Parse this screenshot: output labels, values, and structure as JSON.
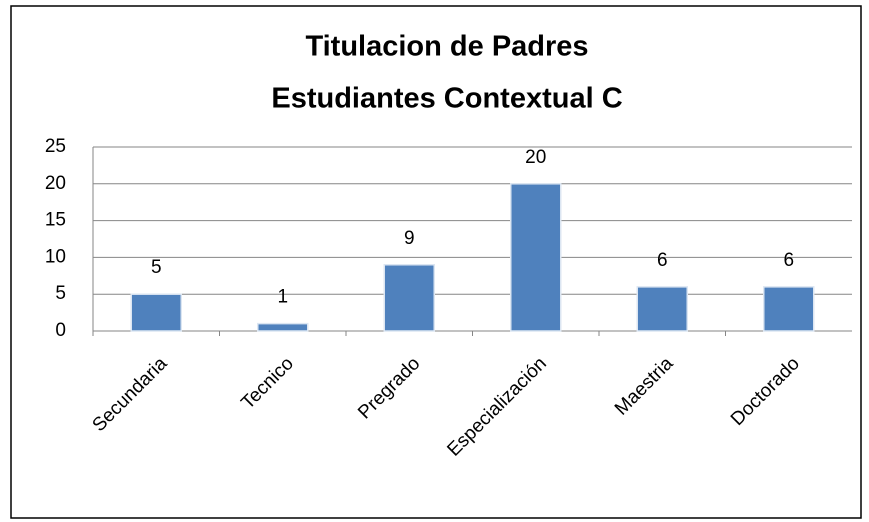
{
  "chart_data": {
    "type": "bar",
    "title": [
      "Titulacion de Padres",
      "Estudiantes Contextual C"
    ],
    "categories": [
      "Secundaria",
      "Tecnico",
      "Pregrado",
      "Especialización",
      "Maestria",
      "Doctorado"
    ],
    "values": [
      5,
      1,
      9,
      20,
      6,
      6
    ],
    "color": "#4f81bd",
    "ylim": [
      0,
      25
    ],
    "yticks": [
      0,
      5,
      10,
      15,
      20,
      25
    ],
    "grid": true,
    "data_labels": true
  }
}
